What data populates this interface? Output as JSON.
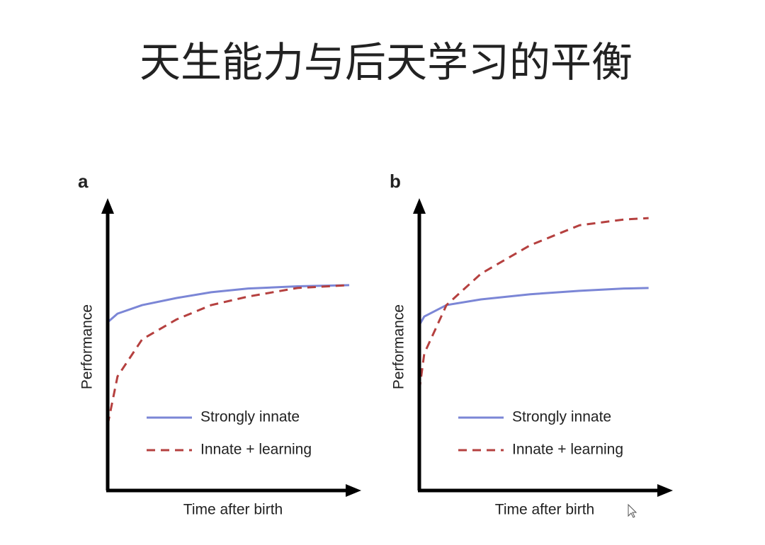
{
  "title": "天生能力与后天学习的平衡",
  "chart_data": [
    {
      "type": "line",
      "label": "a",
      "x_label": "Time after birth",
      "y_label": "Performance",
      "xlim": [
        0,
        100
      ],
      "ylim": [
        0,
        100
      ],
      "legend": "lower right",
      "x": [
        0,
        4,
        14,
        28,
        42,
        57,
        77,
        98
      ],
      "series": [
        {
          "name": "Strongly innate",
          "color": "#7b86d6",
          "style": "solid",
          "values": [
            59,
            62,
            65,
            67.5,
            69.5,
            70.8,
            71.6,
            72
          ]
        },
        {
          "name": "Innate + learning",
          "color": "#b5403f",
          "style": "dashed",
          "values": [
            23,
            40,
            53,
            60,
            65,
            68,
            71,
            72
          ]
        }
      ]
    },
    {
      "type": "line",
      "label": "b",
      "x_label": "Time after birth",
      "y_label": "Performance",
      "xlim": [
        0,
        100
      ],
      "ylim": [
        0,
        100
      ],
      "legend": "lower right",
      "x": [
        0,
        2,
        11,
        25,
        45,
        65,
        83,
        93
      ],
      "series": [
        {
          "name": "Strongly innate",
          "color": "#7b86d6",
          "style": "solid",
          "values": [
            58,
            61,
            65,
            67,
            68.8,
            70,
            70.8,
            71
          ]
        },
        {
          "name": "Innate + learning",
          "color": "#b5403f",
          "style": "dashed",
          "values": [
            35,
            48,
            65,
            76,
            86,
            93,
            95,
            95.5
          ]
        }
      ]
    }
  ]
}
